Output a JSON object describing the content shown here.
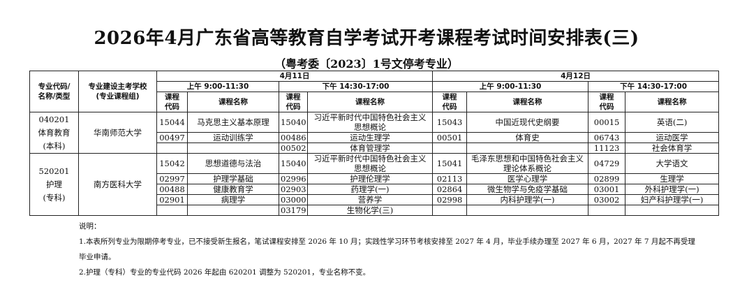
{
  "title": "2026年4月广东省高等教育自学考试开考课程考试时间安排表(三)",
  "subtitle": "（粤考委〔2023〕1号文停考专业）",
  "table": {
    "headers": {
      "major": "专业代码/名称/类型",
      "school": "专业建设主考学校(专业课程组)",
      "day1": "4月11日",
      "day2": "4月12日",
      "am": "上午 9:00-11:30",
      "pm": "下午 14:30-17:00",
      "code": "课程代码",
      "name": "课程名称"
    },
    "groups": [
      {
        "major_code": "040201",
        "major_name": "体育教育",
        "major_type": "(本科)",
        "school": "华南师范大学",
        "rows": [
          [
            "15044",
            "马克思主义基本原理",
            "15040",
            "习近平新时代中国特色社会主义思想概论",
            "15043",
            "中国近现代史纲要",
            "00015",
            "英语(二)"
          ],
          [
            "00497",
            "运动训练学",
            "00486",
            "运动生理学",
            "00501",
            "体育史",
            "06743",
            "运动医学"
          ],
          [
            "",
            "",
            "00502",
            "体育管理学",
            "",
            "",
            "11123",
            "社会体育学"
          ]
        ]
      },
      {
        "major_code": "520201",
        "major_name": "护理",
        "major_type": "(专科)",
        "school": "南方医科大学",
        "rows": [
          [
            "15042",
            "思想道德与法治",
            "15040",
            "习近平新时代中国特色社会主义思想概论",
            "15041",
            "毛泽东思想和中国特色社会主义理论体系概论",
            "04729",
            "大学语文"
          ],
          [
            "02997",
            "护理学基础",
            "02996",
            "护理伦理学",
            "02113",
            "医学心理学",
            "02899",
            "生理学"
          ],
          [
            "00488",
            "健康教育学",
            "02903",
            "药理学(一)",
            "02864",
            "微生物学与免疫学基础",
            "03001",
            "外科护理学(一)"
          ],
          [
            "02901",
            "病理学",
            "03000",
            "营养学",
            "02998",
            "内科护理学(一)",
            "03002",
            "妇产科护理学(一)"
          ],
          [
            "",
            "",
            "03179",
            "生物化学(三)",
            "",
            "",
            "",
            ""
          ]
        ]
      }
    ]
  },
  "notes": {
    "label": "说明：",
    "items": [
      "1.本表所列专业为限期停考专业，已不接受新生报名，笔试课程安排至 2026 年 10 月；实践性学习环节考核安排至 2027 年 4 月，毕业手续办理至 2027 年 6 月，2027 年 7 月起不再受理",
      "毕业申请。",
      "2.护理（专科）专业的专业代码 2026 年起由 620201 调整为 520201，专业名称不变。"
    ]
  }
}
